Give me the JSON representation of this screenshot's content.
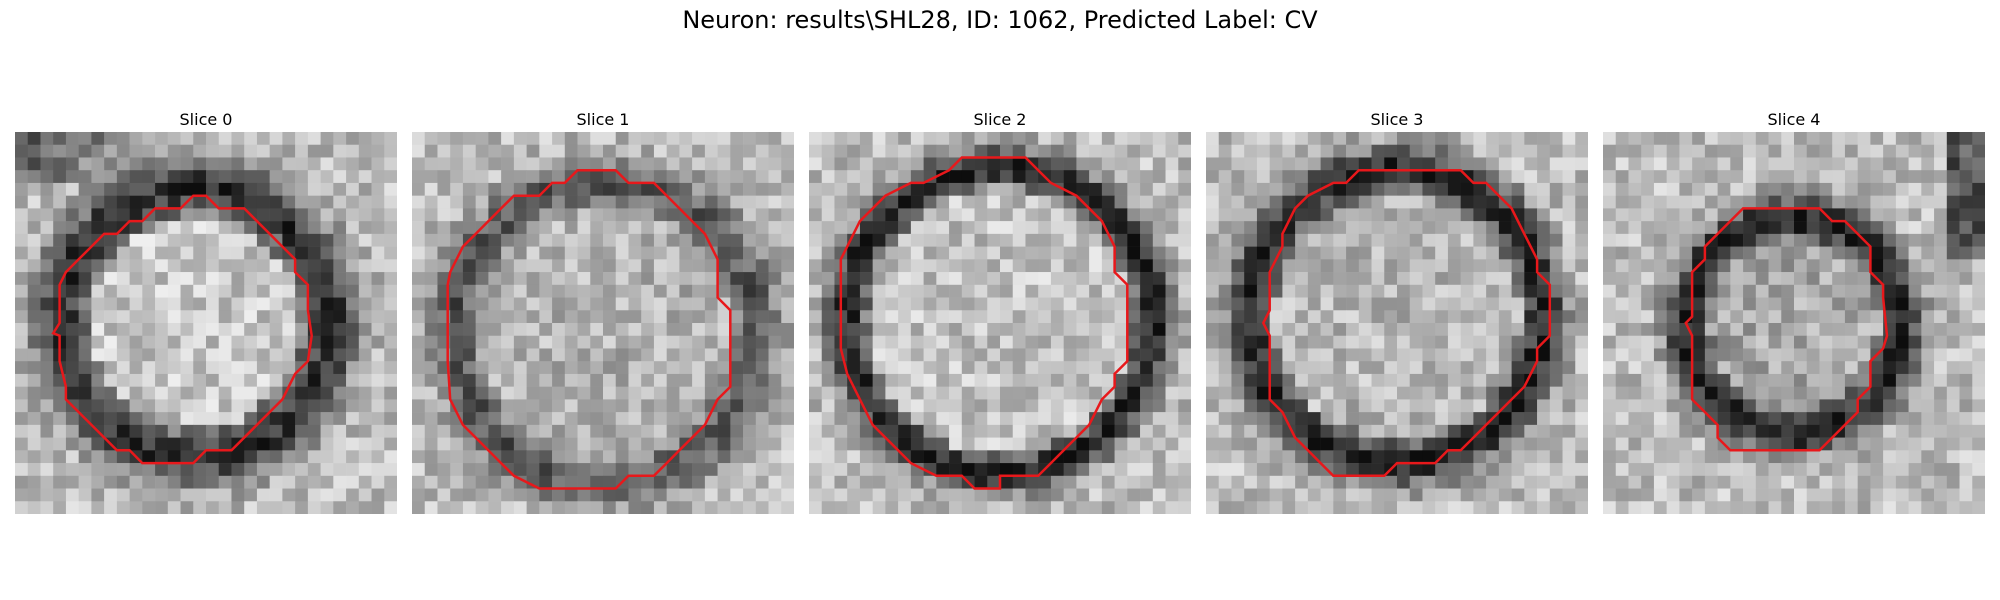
{
  "figure": {
    "title": "Neuron: results\\SHL28, ID: 1062, Predicted Label: CV"
  },
  "panels": [
    {
      "title": "Slice 0"
    },
    {
      "title": "Slice 1"
    },
    {
      "title": "Slice 2"
    },
    {
      "title": "Slice 3"
    },
    {
      "title": "Slice 4"
    }
  ],
  "contour_color": "#e8181b"
}
